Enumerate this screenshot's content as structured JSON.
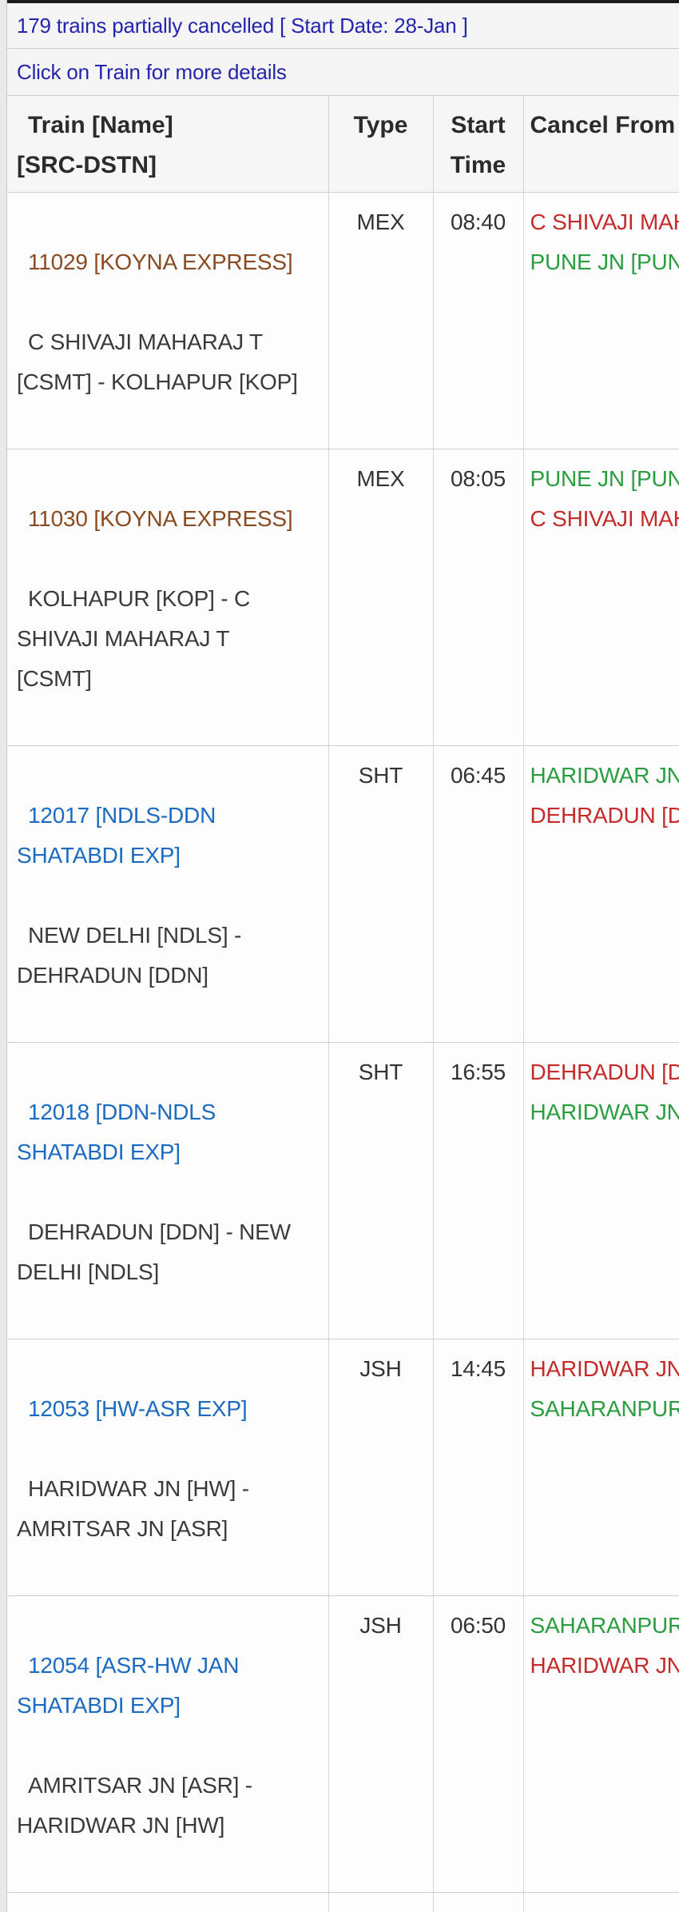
{
  "colors": {
    "banner_text": "#2424ac",
    "link_blue": "#1b6bc2",
    "link_visited": "#8a4a22",
    "cancel_red": "#c52b2b",
    "cancel_green": "#2a9d3f"
  },
  "banner": {
    "summary": "179 trains partially cancelled [ Start Date: 28-Jan ]",
    "instruction": "Click on Train for more details"
  },
  "table": {
    "header": {
      "train": "Train [Name]\n[SRC-DSTN]",
      "type": "Type",
      "start_time": "Start\nTime",
      "cancel": "Cancel From\nCancel To"
    },
    "rows": [
      {
        "train_no": "11029 [KOYNA EXPRESS]",
        "link_color": "#8a4a22",
        "route": "C SHIVAJI MAHARAJ T\n[CSMT] - KOLHAPUR [KOP]",
        "type": "MEX",
        "start_time": "08:40",
        "cancel_from": "C SHIVAJI MAH",
        "cancel_from_color": "#c52b2b",
        "cancel_to": "PUNE JN [PUNE",
        "cancel_to_color": "#2a9d3f"
      },
      {
        "train_no": "11030 [KOYNA EXPRESS]",
        "link_color": "#8a4a22",
        "route": "KOLHAPUR [KOP] - C\nSHIVAJI MAHARAJ T\n[CSMT]",
        "type": "MEX",
        "start_time": "08:05",
        "cancel_from": "PUNE JN [PUNE",
        "cancel_from_color": "#2a9d3f",
        "cancel_to": "C SHIVAJI MAH",
        "cancel_to_color": "#c52b2b"
      },
      {
        "train_no": "12017 [NDLS-DDN\nSHATABDI EXP]",
        "link_color": "#1b6bc2",
        "route": "NEW DELHI [NDLS] -\nDEHRADUN [DDN]",
        "type": "SHT",
        "start_time": "06:45",
        "cancel_from": "HARIDWAR JN",
        "cancel_from_color": "#2a9d3f",
        "cancel_to": "DEHRADUN [DD",
        "cancel_to_color": "#c52b2b"
      },
      {
        "train_no": "12018 [DDN-NDLS\nSHATABDI EXP]",
        "link_color": "#1b6bc2",
        "route": "DEHRADUN [DDN] - NEW\nDELHI [NDLS]",
        "type": "SHT",
        "start_time": "16:55",
        "cancel_from": "DEHRADUN [DD",
        "cancel_from_color": "#c52b2b",
        "cancel_to": "HARIDWAR JN",
        "cancel_to_color": "#2a9d3f"
      },
      {
        "train_no": "12053 [HW-ASR EXP]",
        "link_color": "#1b6bc2",
        "route": "HARIDWAR JN [HW] -\nAMRITSAR JN [ASR]",
        "type": "JSH",
        "start_time": "14:45",
        "cancel_from": "HARIDWAR JN",
        "cancel_from_color": "#c52b2b",
        "cancel_to": "SAHARANPUR [",
        "cancel_to_color": "#2a9d3f"
      },
      {
        "train_no": "12054 [ASR-HW JAN\nSHATABDI EXP]",
        "link_color": "#1b6bc2",
        "route": "AMRITSAR JN [ASR] -\nHARIDWAR JN [HW]",
        "type": "JSH",
        "start_time": "06:50",
        "cancel_from": "SAHARANPUR [",
        "cancel_from_color": "#2a9d3f",
        "cancel_to": "HARIDWAR JN",
        "cancel_to_color": "#c52b2b"
      }
    ]
  }
}
